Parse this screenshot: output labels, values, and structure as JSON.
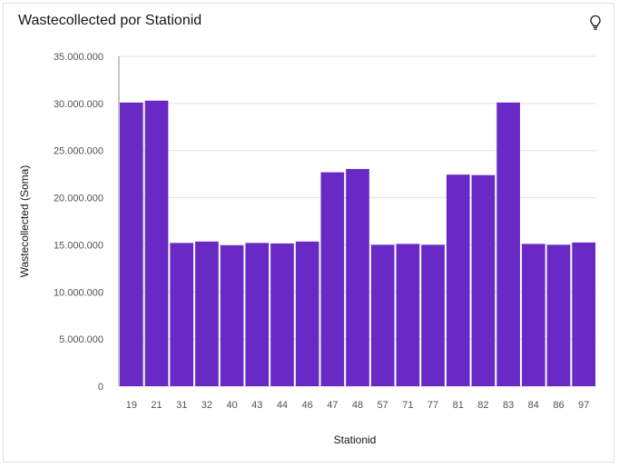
{
  "title": "Wastecollected por Stationid",
  "icons": {
    "insight": "lightbulb-icon"
  },
  "colors": {
    "bar": "#6929c4",
    "grid": "#e0e0e0",
    "axis": "#8d8d8d"
  },
  "chart_data": {
    "type": "bar",
    "title": "Wastecollected por Stationid",
    "xlabel": "Stationid",
    "ylabel": "Wastecollected (Soma)",
    "categories": [
      "19",
      "21",
      "31",
      "32",
      "40",
      "43",
      "44",
      "46",
      "47",
      "48",
      "57",
      "71",
      "77",
      "81",
      "82",
      "83",
      "84",
      "86",
      "97"
    ],
    "values": [
      30100000,
      30300000,
      15200000,
      15350000,
      14950000,
      15200000,
      15150000,
      15350000,
      22700000,
      23050000,
      15000000,
      15100000,
      15000000,
      22450000,
      22400000,
      30100000,
      15100000,
      15000000,
      15250000
    ],
    "ylim": [
      0,
      35000000
    ],
    "yticks": [
      0,
      5000000,
      10000000,
      15000000,
      20000000,
      25000000,
      30000000,
      35000000
    ],
    "ytick_labels": [
      "0",
      "5.000.000",
      "10.000.000",
      "15.000.000",
      "20.000.000",
      "25.000.000",
      "30.000.000",
      "35.000.000"
    ],
    "grid": true,
    "legend": "none"
  }
}
